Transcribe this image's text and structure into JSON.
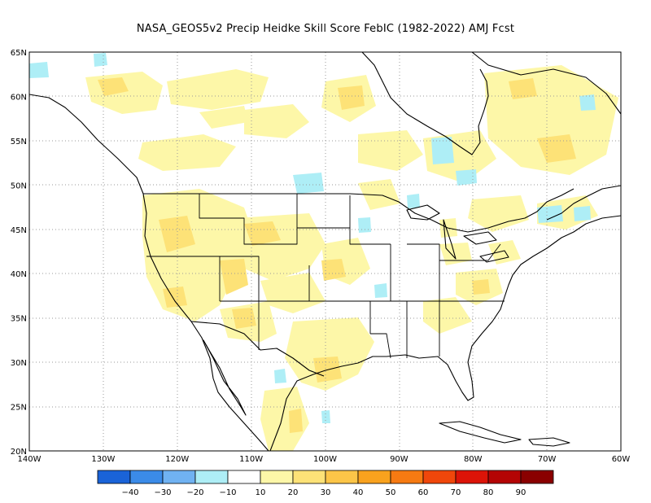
{
  "title": "NASA_GEOS5v2 Precip Heidke Skill Score FebIC (1982-2022) AMJ Fcst",
  "map": {
    "lon_range": [
      -140,
      -60
    ],
    "lat_range": [
      20,
      65
    ],
    "lat_labels": [
      "20N",
      "25N",
      "30N",
      "35N",
      "40N",
      "45N",
      "50N",
      "55N",
      "60N",
      "65N"
    ],
    "lon_labels": [
      "140W",
      "130W",
      "120W",
      "110W",
      "100W",
      "90W",
      "80W",
      "70W",
      "60W"
    ],
    "grid": "dotted"
  },
  "colorbar": {
    "colors": [
      "#1a63d8",
      "#3b8be8",
      "#70b2f2",
      "#aeeef6",
      "#ffffff",
      "#fdf7a8",
      "#fde277",
      "#fcc548",
      "#f9a21e",
      "#f67a12",
      "#f0470b",
      "#dc1408",
      "#b40404",
      "#8a0000"
    ],
    "labels": [
      "−40",
      "−30",
      "−20",
      "−10",
      "10",
      "20",
      "30",
      "40",
      "50",
      "60",
      "70",
      "80",
      "90"
    ]
  }
}
